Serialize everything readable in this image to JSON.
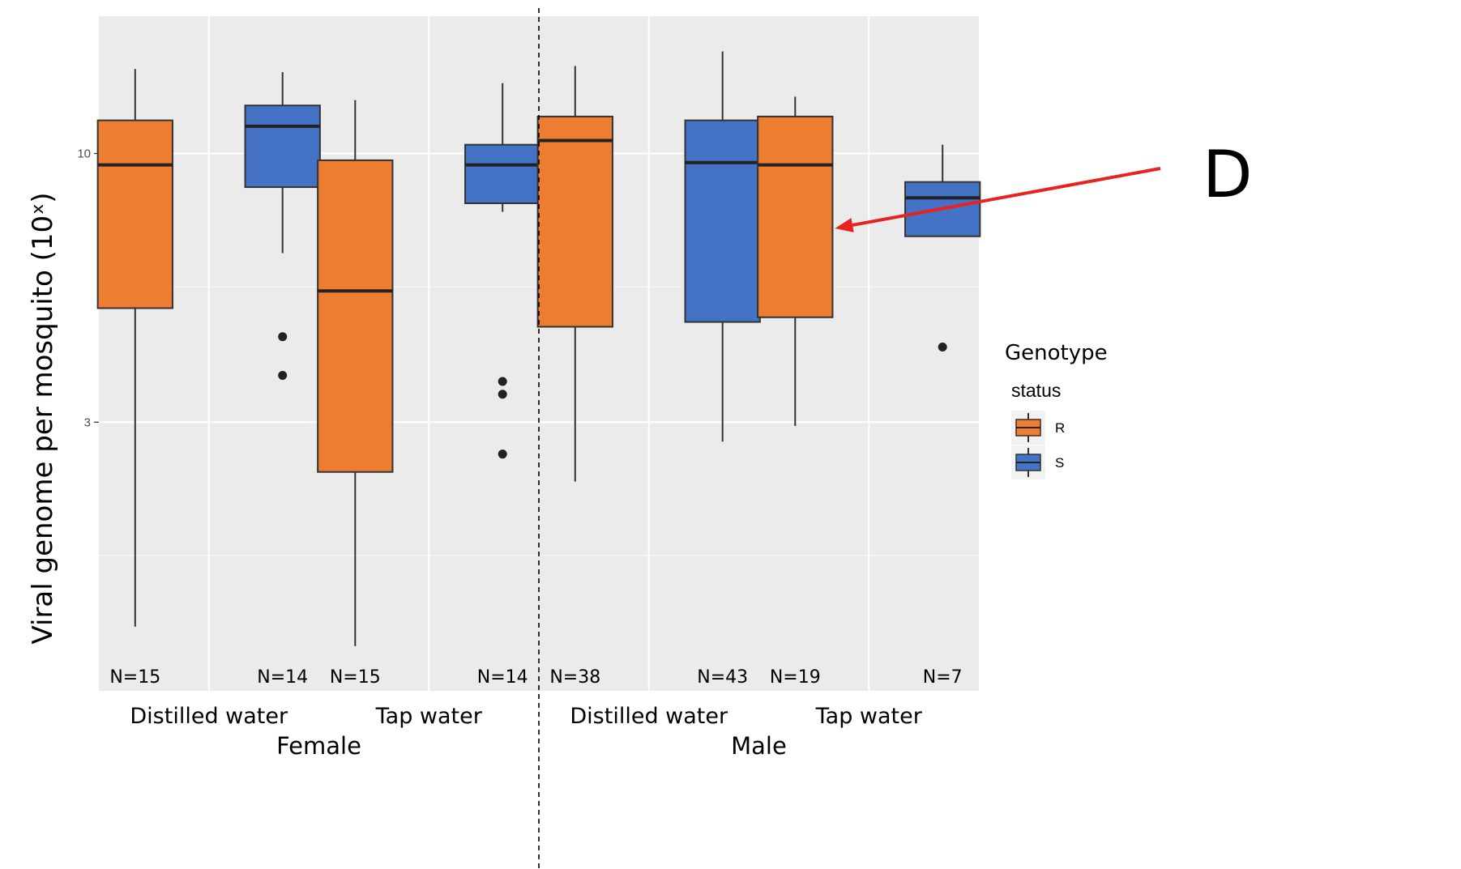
{
  "chart_data": {
    "type": "boxplot",
    "ylabel": "Viral genome per mosquito (10ˣ)",
    "y_scale": "log",
    "ylim": [
      0.9,
      18.5
    ],
    "y_ticks": [
      {
        "value": 10,
        "label": "10"
      },
      {
        "value": 3,
        "label": "3"
      }
    ],
    "y_minor_gridlines": [
      5.5,
      1.65
    ],
    "grid": true,
    "groups": [
      {
        "name": "Female",
        "categories": [
          "Distilled water",
          "Tap water"
        ]
      },
      {
        "name": "Male",
        "categories": [
          "Distilled water",
          "Tap water"
        ]
      }
    ],
    "legend": {
      "title": "Genotype",
      "subtitle": "status",
      "placement": "right",
      "entries": [
        {
          "key": "R",
          "color": "#ED7D31"
        },
        {
          "key": "S",
          "color": "#4472C4"
        }
      ]
    },
    "boxes": [
      {
        "group": "Female",
        "category": "Distilled water",
        "genotype": "R",
        "n": "N=15",
        "min": 1.2,
        "q1": 5.0,
        "median": 9.5,
        "q3": 11.6,
        "max": 14.6,
        "outliers": []
      },
      {
        "group": "Female",
        "category": "Distilled water",
        "genotype": "S",
        "n": "N=14",
        "min": 6.4,
        "q1": 8.6,
        "median": 11.3,
        "q3": 12.4,
        "max": 14.4,
        "outliers": [
          4.4,
          3.7
        ]
      },
      {
        "group": "Female",
        "category": "Tap water",
        "genotype": "R",
        "n": "N=15",
        "min": 1.1,
        "q1": 2.4,
        "median": 5.4,
        "q3": 9.7,
        "max": 12.7,
        "outliers": []
      },
      {
        "group": "Female",
        "category": "Tap water",
        "genotype": "S",
        "n": "N=14",
        "min": 7.7,
        "q1": 8.0,
        "median": 9.5,
        "q3": 10.4,
        "max": 13.7,
        "outliers": [
          3.6,
          3.4,
          2.6
        ]
      },
      {
        "group": "Male",
        "category": "Distilled water",
        "genotype": "R",
        "n": "N=38",
        "min": 2.3,
        "q1": 4.6,
        "median": 10.6,
        "q3": 11.8,
        "max": 14.8,
        "outliers": []
      },
      {
        "group": "Male",
        "category": "Distilled water",
        "genotype": "S",
        "n": "N=43",
        "min": 2.75,
        "q1": 4.7,
        "median": 9.6,
        "q3": 11.6,
        "max": 15.8,
        "outliers": []
      },
      {
        "group": "Male",
        "category": "Tap water",
        "genotype": "R",
        "n": "N=19",
        "min": 2.95,
        "q1": 4.8,
        "median": 9.5,
        "q3": 11.8,
        "max": 12.9,
        "outliers": []
      },
      {
        "group": "Male",
        "category": "Tap water",
        "genotype": "S",
        "n": "N=7",
        "min": 6.9,
        "q1": 6.9,
        "median": 8.2,
        "q3": 8.8,
        "max": 10.4,
        "outliers": [
          4.2
        ]
      }
    ],
    "annotation": {
      "label": "D",
      "color": "#E8231F",
      "points_to": {
        "group": "Male",
        "category": "Tap water",
        "genotype": "R"
      }
    }
  }
}
